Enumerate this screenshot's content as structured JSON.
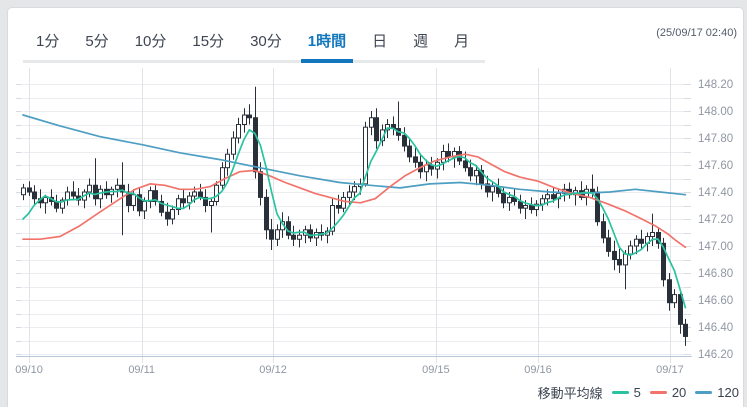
{
  "header": {
    "timeframe_tabs": [
      {
        "label": "1分",
        "active": false
      },
      {
        "label": "5分",
        "active": false
      },
      {
        "label": "10分",
        "active": false
      },
      {
        "label": "15分",
        "active": false
      },
      {
        "label": "30分",
        "active": false
      },
      {
        "label": "1時間",
        "active": true
      },
      {
        "label": "日",
        "active": false
      },
      {
        "label": "週",
        "active": false
      },
      {
        "label": "月",
        "active": false
      }
    ],
    "timestamp": "(25/09/17 02:40)"
  },
  "legend": {
    "title": "移動平均線",
    "series": [
      {
        "label": "5",
        "color": "#29c3a0"
      },
      {
        "label": "20",
        "color": "#f2736c"
      },
      {
        "label": "120",
        "color": "#4d9ec2"
      }
    ]
  },
  "colors": {
    "tab_active": "#1377be",
    "candle_outline": "#2a303a",
    "candle_bull_fill": "#ffffff",
    "candle_bear_fill": "#2a303a",
    "grid_line": "#ebecef",
    "day_line": "#e0e3ea",
    "axis_line": "#b7c6d9",
    "axis_text": "#9097a3"
  },
  "chart_data": {
    "type": "candlestick",
    "y_axis": {
      "min": 146.16,
      "max": 148.3,
      "grid_step": 0.1,
      "labels": [
        "148.20",
        "148.00",
        "147.80",
        "147.60",
        "147.40",
        "147.20",
        "147.00",
        "146.80",
        "146.60",
        "146.40",
        "146.20"
      ]
    },
    "x_axis": [
      {
        "label": "09/10",
        "i": 1.1
      },
      {
        "label": "09/11",
        "i": 21.5
      },
      {
        "label": "09/12",
        "i": 45.3
      },
      {
        "label": "09/15",
        "i": 74.8
      },
      {
        "label": "09/16",
        "i": 93.3
      },
      {
        "label": "09/17",
        "i": 117.2
      }
    ],
    "candles_ohlc": [
      [
        147.38,
        147.46,
        147.34,
        147.43
      ],
      [
        147.43,
        147.48,
        147.37,
        147.4
      ],
      [
        147.4,
        147.45,
        147.3,
        147.35
      ],
      [
        147.35,
        147.42,
        147.28,
        147.32
      ],
      [
        147.32,
        147.38,
        147.24,
        147.36
      ],
      [
        147.36,
        147.42,
        147.3,
        147.33
      ],
      [
        147.33,
        147.38,
        147.25,
        147.28
      ],
      [
        147.28,
        147.36,
        147.24,
        147.34
      ],
      [
        147.34,
        147.44,
        147.3,
        147.4
      ],
      [
        147.4,
        147.48,
        147.34,
        147.37
      ],
      [
        147.37,
        147.43,
        147.3,
        147.34
      ],
      [
        147.34,
        147.42,
        147.28,
        147.4
      ],
      [
        147.4,
        147.5,
        147.36,
        147.45
      ],
      [
        147.45,
        147.65,
        147.3,
        147.35
      ],
      [
        147.35,
        147.45,
        147.28,
        147.42
      ],
      [
        147.42,
        147.48,
        147.35,
        147.38
      ],
      [
        147.38,
        147.44,
        147.32,
        147.42
      ],
      [
        147.42,
        147.5,
        147.36,
        147.45
      ],
      [
        147.45,
        147.62,
        147.08,
        147.4
      ],
      [
        147.4,
        147.46,
        147.25,
        147.3
      ],
      [
        147.3,
        147.42,
        147.26,
        147.38
      ],
      [
        147.38,
        147.43,
        147.22,
        147.26
      ],
      [
        147.26,
        147.36,
        147.2,
        147.33
      ],
      [
        147.33,
        147.44,
        147.28,
        147.41
      ],
      [
        147.41,
        147.45,
        147.3,
        147.33
      ],
      [
        147.33,
        147.38,
        147.22,
        147.25
      ],
      [
        147.25,
        147.32,
        147.15,
        147.2
      ],
      [
        147.2,
        147.3,
        147.16,
        147.27
      ],
      [
        147.27,
        147.38,
        147.23,
        147.35
      ],
      [
        147.35,
        147.42,
        147.28,
        147.32
      ],
      [
        147.32,
        147.4,
        147.27,
        147.37
      ],
      [
        147.37,
        147.44,
        147.32,
        147.4
      ],
      [
        147.4,
        147.46,
        147.34,
        147.36
      ],
      [
        147.36,
        147.42,
        147.25,
        147.3
      ],
      [
        147.3,
        147.36,
        147.1,
        147.33
      ],
      [
        147.33,
        147.48,
        147.3,
        147.45
      ],
      [
        147.45,
        147.62,
        147.42,
        147.58
      ],
      [
        147.58,
        147.72,
        147.52,
        147.68
      ],
      [
        147.68,
        147.85,
        147.64,
        147.8
      ],
      [
        147.8,
        147.95,
        147.76,
        147.9
      ],
      [
        147.9,
        148.02,
        147.84,
        147.97
      ],
      [
        147.97,
        148.05,
        147.9,
        147.95
      ],
      [
        147.95,
        148.18,
        147.5,
        147.55
      ],
      [
        147.55,
        147.62,
        147.3,
        147.36
      ],
      [
        147.36,
        147.42,
        147.05,
        147.12
      ],
      [
        147.12,
        147.2,
        146.97,
        147.05
      ],
      [
        147.05,
        147.16,
        147.0,
        147.12
      ],
      [
        147.12,
        147.25,
        147.06,
        147.18
      ],
      [
        147.18,
        147.22,
        147.05,
        147.08
      ],
      [
        147.08,
        147.15,
        147.0,
        147.05
      ],
      [
        147.05,
        147.12,
        146.99,
        147.08
      ],
      [
        147.08,
        147.15,
        147.02,
        147.12
      ],
      [
        147.12,
        147.16,
        147.03,
        147.06
      ],
      [
        147.06,
        147.13,
        147.0,
        147.1
      ],
      [
        147.1,
        147.16,
        147.04,
        147.08
      ],
      [
        147.08,
        147.14,
        147.02,
        147.11
      ],
      [
        147.11,
        147.35,
        147.08,
        147.3
      ],
      [
        147.3,
        147.38,
        147.24,
        147.28
      ],
      [
        147.28,
        147.4,
        147.25,
        147.36
      ],
      [
        147.36,
        147.45,
        147.3,
        147.4
      ],
      [
        147.4,
        147.48,
        147.34,
        147.44
      ],
      [
        147.44,
        147.5,
        147.38,
        147.46
      ],
      [
        147.46,
        147.92,
        147.44,
        147.88
      ],
      [
        147.88,
        148.0,
        147.82,
        147.95
      ],
      [
        147.95,
        148.02,
        147.72,
        147.78
      ],
      [
        147.78,
        147.9,
        147.74,
        147.86
      ],
      [
        147.86,
        147.94,
        147.8,
        147.9
      ],
      [
        147.9,
        147.96,
        147.82,
        147.87
      ],
      [
        147.87,
        148.07,
        147.78,
        147.82
      ],
      [
        147.82,
        147.88,
        147.7,
        147.74
      ],
      [
        147.74,
        147.8,
        147.62,
        147.66
      ],
      [
        147.66,
        147.74,
        147.58,
        147.62
      ],
      [
        147.62,
        147.68,
        147.5,
        147.55
      ],
      [
        147.55,
        147.64,
        147.48,
        147.6
      ],
      [
        147.6,
        147.66,
        147.52,
        147.57
      ],
      [
        147.57,
        147.65,
        147.5,
        147.62
      ],
      [
        147.62,
        147.75,
        147.56,
        147.7
      ],
      [
        147.7,
        147.76,
        147.62,
        147.66
      ],
      [
        147.66,
        147.73,
        147.58,
        147.7
      ],
      [
        147.7,
        147.74,
        147.6,
        147.63
      ],
      [
        147.63,
        147.7,
        147.55,
        147.58
      ],
      [
        147.58,
        147.64,
        147.48,
        147.52
      ],
      [
        147.52,
        147.6,
        147.45,
        147.56
      ],
      [
        147.56,
        147.6,
        147.42,
        147.46
      ],
      [
        147.46,
        147.52,
        147.36,
        147.4
      ],
      [
        147.4,
        147.48,
        147.33,
        147.44
      ],
      [
        147.44,
        147.5,
        147.36,
        147.39
      ],
      [
        147.39,
        147.44,
        147.28,
        147.32
      ],
      [
        147.32,
        147.4,
        147.26,
        147.36
      ],
      [
        147.36,
        147.42,
        147.3,
        147.33
      ],
      [
        147.33,
        147.38,
        147.24,
        147.28
      ],
      [
        147.28,
        147.34,
        147.2,
        147.3
      ],
      [
        147.3,
        147.36,
        147.24,
        147.27
      ],
      [
        147.27,
        147.34,
        147.22,
        147.31
      ],
      [
        147.31,
        147.38,
        147.26,
        147.35
      ],
      [
        147.35,
        147.42,
        147.3,
        147.38
      ],
      [
        147.38,
        147.44,
        147.32,
        147.35
      ],
      [
        147.35,
        147.42,
        147.28,
        147.39
      ],
      [
        147.39,
        147.46,
        147.33,
        147.42
      ],
      [
        147.42,
        147.47,
        147.35,
        147.38
      ],
      [
        147.38,
        147.44,
        147.3,
        147.41
      ],
      [
        147.41,
        147.48,
        147.34,
        147.36
      ],
      [
        147.36,
        147.45,
        147.3,
        147.42
      ],
      [
        147.42,
        147.53,
        147.36,
        147.4
      ],
      [
        147.4,
        147.44,
        147.15,
        147.18
      ],
      [
        147.18,
        147.24,
        147.02,
        147.06
      ],
      [
        147.06,
        147.12,
        146.92,
        146.96
      ],
      [
        146.96,
        147.04,
        146.82,
        146.9
      ],
      [
        146.9,
        146.98,
        146.8,
        146.86
      ],
      [
        146.86,
        146.97,
        146.68,
        146.94
      ],
      [
        146.94,
        147.04,
        146.9,
        147.0
      ],
      [
        147.0,
        147.08,
        146.94,
        147.05
      ],
      [
        147.05,
        147.12,
        146.98,
        147.02
      ],
      [
        147.02,
        147.1,
        146.96,
        147.07
      ],
      [
        147.07,
        147.24,
        147.0,
        147.1
      ],
      [
        147.1,
        147.14,
        146.98,
        147.02
      ],
      [
        147.02,
        147.06,
        146.7,
        146.75
      ],
      [
        146.75,
        146.8,
        146.52,
        146.58
      ],
      [
        146.58,
        146.68,
        146.54,
        146.64
      ],
      [
        146.64,
        146.66,
        146.35,
        146.42
      ],
      [
        146.42,
        146.46,
        146.26,
        146.33
      ]
    ],
    "moving_averages": [
      {
        "period": 5,
        "color": "#29c3a0",
        "computed_from_closes": true,
        "seed_prior_closes": [
          147.05,
          147.12,
          147.2
        ]
      },
      {
        "period": 20,
        "color": "#f2736c",
        "polyline": [
          [
            0,
            147.05
          ],
          [
            3.1,
            147.05
          ],
          [
            6.7,
            147.07
          ],
          [
            10.3,
            147.15
          ],
          [
            13.9,
            147.25
          ],
          [
            17.6,
            147.35
          ],
          [
            20.3,
            147.42
          ],
          [
            23,
            147.46
          ],
          [
            25.7,
            147.45
          ],
          [
            28.4,
            147.42
          ],
          [
            31.2,
            147.42
          ],
          [
            33.9,
            147.44
          ],
          [
            36.6,
            147.5
          ],
          [
            39.3,
            147.55
          ],
          [
            42,
            147.56
          ],
          [
            44.7,
            147.52
          ],
          [
            47.5,
            147.47
          ],
          [
            50.2,
            147.43
          ],
          [
            52.9,
            147.39
          ],
          [
            55.6,
            147.36
          ],
          [
            58.3,
            147.33
          ],
          [
            61.1,
            147.32
          ],
          [
            63.8,
            147.35
          ],
          [
            66.5,
            147.44
          ],
          [
            69.2,
            147.52
          ],
          [
            71.9,
            147.58
          ],
          [
            74.6,
            147.63
          ],
          [
            77.4,
            147.66
          ],
          [
            80.1,
            147.68
          ],
          [
            82.4,
            147.66
          ],
          [
            84.6,
            147.61
          ],
          [
            87.3,
            147.55
          ],
          [
            90,
            147.51
          ],
          [
            93.3,
            147.48
          ],
          [
            96.4,
            147.43
          ],
          [
            99.5,
            147.39
          ],
          [
            102.7,
            147.36
          ],
          [
            106,
            147.31
          ],
          [
            109.1,
            147.26
          ],
          [
            112.1,
            147.2
          ],
          [
            114.5,
            147.15
          ],
          [
            116.8,
            147.09
          ],
          [
            118.3,
            147.04
          ],
          [
            120,
            146.99
          ]
        ]
      },
      {
        "period": 120,
        "color": "#4d9ec2",
        "polyline": [
          [
            0,
            147.97
          ],
          [
            6.7,
            147.89
          ],
          [
            13.9,
            147.81
          ],
          [
            21.6,
            147.75
          ],
          [
            28.4,
            147.69
          ],
          [
            35.7,
            147.64
          ],
          [
            42.9,
            147.58
          ],
          [
            50.2,
            147.52
          ],
          [
            57.4,
            147.47
          ],
          [
            62.9,
            147.45
          ],
          [
            68.3,
            147.43
          ],
          [
            73.7,
            147.46
          ],
          [
            79.2,
            147.47
          ],
          [
            84.6,
            147.45
          ],
          [
            90,
            147.42
          ],
          [
            95.5,
            147.4
          ],
          [
            100.9,
            147.39
          ],
          [
            106.3,
            147.4
          ],
          [
            110.9,
            147.42
          ],
          [
            115.4,
            147.4
          ],
          [
            120,
            147.38
          ]
        ]
      }
    ]
  }
}
